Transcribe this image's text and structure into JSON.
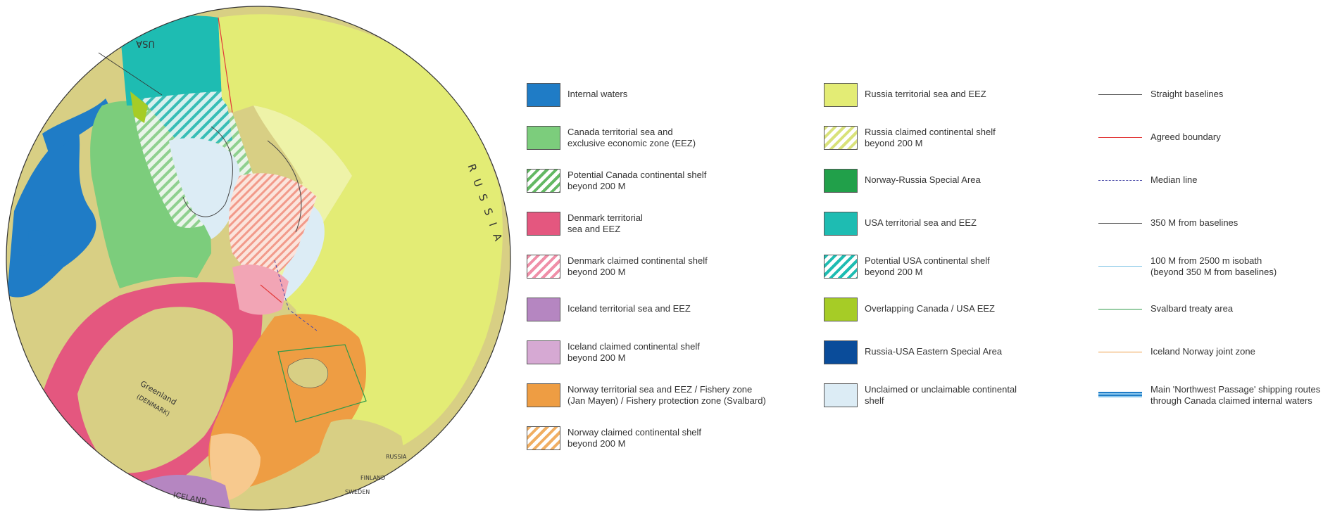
{
  "map": {
    "labels": {
      "usa": "USA",
      "russia_rim": "RUSSIA",
      "greenland": "Greenland",
      "denmark": "(DENMARK)",
      "iceland": "ICELAND",
      "russia_small": "RUSSIA",
      "finland": "FINLAND",
      "sweden": "SWEDEN"
    },
    "colors": {
      "land": "#d8cf84",
      "water": "#1f7cc6",
      "canada_eez": "#7ccd7c",
      "denmark": "#e4577f",
      "denmark_shelf": "#f2a5b5",
      "iceland": "#b586c1",
      "iceland_shelf": "#d6a9d3",
      "norway": "#ee9d43",
      "norway_shelf": "#f7c98e",
      "russia": "#e3ec75",
      "russia_shelf": "#eef3a8",
      "usa": "#1ebcb2",
      "unclaimed": "#dcecf5",
      "overlap": "#a6cc26"
    }
  },
  "legend": {
    "col1": [
      {
        "type": "fill",
        "label": "Internal waters",
        "color": "#1f7cc6"
      },
      {
        "type": "fill",
        "label": "Canada territorial sea and\nexclusive economic zone (EEZ)",
        "color": "#7ccd7c"
      },
      {
        "type": "hatch",
        "label": "Potential Canada continental shelf\nbeyond 200 M",
        "color": "#63b863"
      },
      {
        "type": "fill",
        "label": "Denmark territorial\nsea and EEZ",
        "color": "#e4577f"
      },
      {
        "type": "hatch",
        "label": "Denmark claimed continental shelf\nbeyond 200 M",
        "color": "#ef8fa8"
      },
      {
        "type": "fill",
        "label": "Iceland territorial sea and EEZ",
        "color": "#b586c1"
      },
      {
        "type": "fill",
        "label": "Iceland claimed continental shelf\nbeyond 200 M",
        "color": "#d6a9d3"
      },
      {
        "type": "fill",
        "label": "Norway territorial sea and EEZ / Fishery zone\n(Jan Mayen) / Fishery protection zone (Svalbard)",
        "color": "#ee9d43"
      },
      {
        "type": "hatch",
        "label": "Norway claimed continental shelf\nbeyond 200 M",
        "color": "#f0ae62"
      }
    ],
    "col2": [
      {
        "type": "fill",
        "label": "Russia territorial sea and EEZ",
        "color": "#e3ec75"
      },
      {
        "type": "hatch",
        "label": "Russia claimed continental shelf\nbeyond 200 M",
        "color": "#d9e27a"
      },
      {
        "type": "fill",
        "label": "Norway-Russia Special Area",
        "color": "#21a04a"
      },
      {
        "type": "fill",
        "label": "USA territorial sea and EEZ",
        "color": "#1ebcb2"
      },
      {
        "type": "hatch",
        "label": "Potential USA continental shelf\nbeyond 200 M",
        "color": "#1ebcb2"
      },
      {
        "type": "fill",
        "label": "Overlapping Canada / USA EEZ",
        "color": "#a6cc26"
      },
      {
        "type": "fill",
        "label": "Russia-USA Eastern Special Area",
        "color": "#0a4c9a"
      },
      {
        "type": "fill",
        "label": "Unclaimed or unclaimable continental\nshelf",
        "color": "#dcecf5"
      }
    ],
    "col3": [
      {
        "type": "line",
        "label": "Straight baselines",
        "color": "#555555",
        "style": "solid"
      },
      {
        "type": "line",
        "label": "Agreed boundary",
        "color": "#e23a3a",
        "style": "solid"
      },
      {
        "type": "line",
        "label": "Median line",
        "color": "#4a4aa8",
        "style": "dashed"
      },
      {
        "type": "line",
        "label": "350 M from baselines",
        "color": "#555555",
        "style": "solid"
      },
      {
        "type": "line",
        "label": "100 M from 2500 m isobath\n(beyond 350 M from baselines)",
        "color": "#7fc4e6",
        "style": "solid"
      },
      {
        "type": "line",
        "label": "Svalbard treaty area",
        "color": "#2e9a4a",
        "style": "solid"
      },
      {
        "type": "line",
        "label": "Iceland Norway joint zone",
        "color": "#ee9d43",
        "style": "solid"
      },
      {
        "type": "route",
        "label": "Main 'Northwest Passage' shipping routes\nthrough Canada claimed internal waters",
        "color": "#1f7cc6"
      }
    ]
  }
}
